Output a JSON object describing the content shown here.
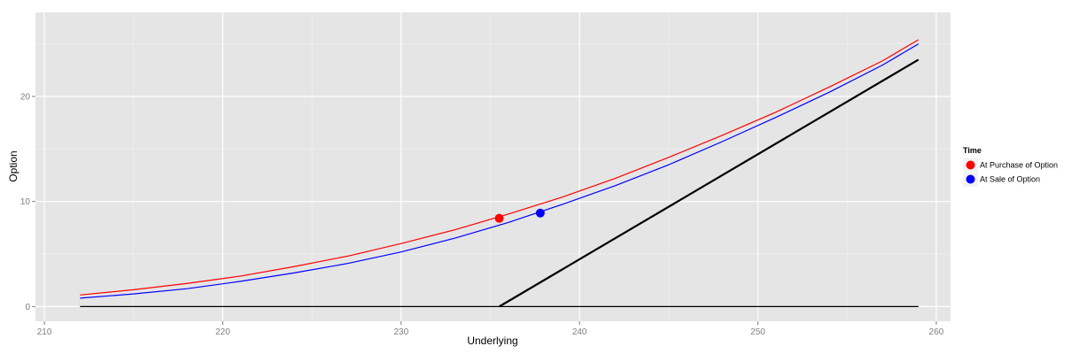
{
  "chart_data": {
    "type": "line",
    "xlabel": "Underlying",
    "ylabel": "Option",
    "xlim": [
      209.5,
      260.8
    ],
    "ylim": [
      -1.4,
      28
    ],
    "x_ticks": [
      210,
      220,
      230,
      240,
      250,
      260
    ],
    "y_ticks": [
      0,
      10,
      20
    ],
    "x_tick_labels": [
      "210",
      "220",
      "230",
      "240",
      "250",
      "260"
    ],
    "y_tick_labels": [
      "0",
      "10",
      "20"
    ],
    "grid": true,
    "legend": {
      "title": "Time",
      "position": "right",
      "entries": [
        {
          "label": "At Purchase of Option",
          "color": "#ff0000"
        },
        {
          "label": "At Sale of Option",
          "color": "#0000ff"
        }
      ]
    },
    "series": [
      {
        "color": "#ff0000",
        "width": 1.2,
        "x": [
          212,
          215,
          218,
          221,
          224,
          227,
          230,
          233,
          236,
          239,
          242,
          245,
          248,
          251,
          254,
          257,
          259
        ],
        "y": [
          1.1,
          1.6,
          2.2,
          2.9,
          3.8,
          4.8,
          6.0,
          7.3,
          8.8,
          10.4,
          12.2,
          14.2,
          16.3,
          18.5,
          20.9,
          23.4,
          25.4
        ]
      },
      {
        "color": "#0000ff",
        "width": 1.2,
        "x": [
          212,
          215,
          218,
          221,
          224,
          227,
          230,
          233,
          236,
          239,
          242,
          245,
          248,
          251,
          254,
          257,
          259
        ],
        "y": [
          0.8,
          1.2,
          1.7,
          2.4,
          3.2,
          4.1,
          5.2,
          6.5,
          8.0,
          9.7,
          11.5,
          13.5,
          15.7,
          18.0,
          20.4,
          23.0,
          25.0
        ]
      },
      {
        "color": "#000000",
        "width": 2.2,
        "x": [
          235.5,
          259
        ],
        "y": [
          0,
          23.5
        ]
      },
      {
        "color": "#000000",
        "width": 1.2,
        "x": [
          212,
          259
        ],
        "y": [
          0,
          0
        ]
      }
    ],
    "points": [
      {
        "x": 235.5,
        "y": 8.4,
        "color": "#ff0000"
      },
      {
        "x": 237.8,
        "y": 8.9,
        "color": "#0000ff"
      }
    ]
  }
}
